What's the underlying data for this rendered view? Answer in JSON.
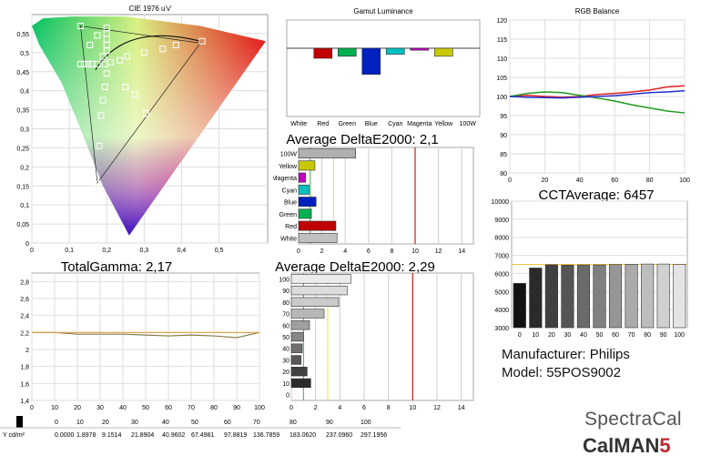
{
  "chart_data": [
    {
      "type": "scatter",
      "title": "CIE 1976 u'v'",
      "x_ticks": [
        "0",
        "0,1",
        "0,2",
        "0,3",
        "0,4",
        "0,5"
      ],
      "y_ticks": [
        "0,55",
        "0,5",
        "0,45",
        "0,4",
        "0,35",
        "0,3",
        "0,25",
        "0,2",
        "0,15",
        "0,1",
        "0,05",
        "0"
      ],
      "xlim": [
        0,
        0.63
      ],
      "ylim": [
        0,
        0.6
      ],
      "grid": true,
      "series": [
        {
          "points": [
            [
              0.13,
              0.57
            ],
            [
              0.155,
              0.52
            ],
            [
              0.175,
              0.545
            ],
            [
              0.2,
              0.565
            ],
            [
              0.2,
              0.55
            ],
            [
              0.2,
              0.535
            ],
            [
              0.2,
              0.52
            ],
            [
              0.2,
              0.505
            ],
            [
              0.19,
              0.49
            ],
            [
              0.175,
              0.47
            ],
            [
              0.14,
              0.47
            ],
            [
              0.13,
              0.47
            ],
            [
              0.15,
              0.47
            ],
            [
              0.16,
              0.47
            ],
            [
              0.195,
              0.47
            ],
            [
              0.21,
              0.475
            ],
            [
              0.235,
              0.48
            ],
            [
              0.255,
              0.49
            ],
            [
              0.3,
              0.5
            ],
            [
              0.35,
              0.51
            ],
            [
              0.385,
              0.52
            ],
            [
              0.455,
              0.53
            ],
            [
              0.2,
              0.445
            ],
            [
              0.195,
              0.41
            ],
            [
              0.19,
              0.375
            ],
            [
              0.25,
              0.41
            ],
            [
              0.275,
              0.39
            ],
            [
              0.305,
              0.34
            ],
            [
              0.185,
              0.335
            ],
            [
              0.18,
              0.255
            ],
            [
              0.175,
              0.155
            ]
          ]
        }
      ]
    },
    {
      "type": "bar",
      "title": "Gamut Luminance",
      "categories": [
        "White",
        "Red",
        "Green",
        "Blue",
        "Cyan",
        "Magenta",
        "Yellow",
        "100W"
      ],
      "values": [
        0,
        -2.5,
        -2,
        -6.5,
        -1.5,
        -0.5,
        -2,
        0
      ],
      "colors": [
        "#808080",
        "#c00000",
        "#00b050",
        "#0020c0",
        "#00c0c0",
        "#c000c0",
        "#c8c800",
        "#808080"
      ],
      "ylim": [
        -12,
        12
      ]
    },
    {
      "type": "line",
      "title": "RGB Balance",
      "x": [
        0,
        10,
        20,
        30,
        40,
        50,
        60,
        70,
        80,
        90,
        100
      ],
      "x_ticks": [
        "0",
        "20",
        "40",
        "60",
        "80",
        "100"
      ],
      "y_ticks": [
        "80",
        "85",
        "90",
        "95",
        "100",
        "105",
        "110",
        "115",
        "120"
      ],
      "ylim": [
        80,
        120
      ],
      "series": [
        {
          "color": "#e02020",
          "values": [
            100,
            100.3,
            100,
            99.8,
            100,
            100.5,
            100.8,
            101.2,
            101.7,
            102.5,
            102.8
          ]
        },
        {
          "color": "#1f9a1f",
          "values": [
            100,
            100.8,
            101.2,
            101,
            100.3,
            99.6,
            98.8,
            97.8,
            97,
            96.2,
            95.7
          ]
        },
        {
          "color": "#2030d0",
          "values": [
            100,
            99.8,
            99.7,
            99.6,
            99.8,
            100,
            100.2,
            100.6,
            101,
            101.2,
            101.5
          ]
        }
      ]
    },
    {
      "type": "bar",
      "title": "Average DeltaE2000: 2,1",
      "orientation": "horizontal",
      "categories": [
        "100W",
        "Yellow",
        "Magenta",
        "Cyan",
        "Blue",
        "Green",
        "Red",
        "White"
      ],
      "values": [
        4.9,
        1.4,
        0.6,
        0.9,
        1.5,
        1.1,
        3.2,
        3.3
      ],
      "colors": [
        "#b0b0b0",
        "#c8c800",
        "#c000c0",
        "#00c0c0",
        "#0020c0",
        "#00b050",
        "#c00000",
        "#c0c0c0"
      ],
      "x_ticks": [
        "0",
        "2",
        "4",
        "6",
        "8",
        "10",
        "12",
        "14"
      ],
      "xlim": [
        0,
        15
      ]
    },
    {
      "type": "line",
      "title": "TotalGamma: 2,17",
      "x": [
        0,
        10,
        20,
        30,
        40,
        50,
        60,
        70,
        80,
        90,
        100
      ],
      "x_ticks": [
        "0",
        "10",
        "20",
        "30",
        "40",
        "50",
        "60",
        "70",
        "80",
        "90",
        "100"
      ],
      "y_ticks": [
        "2,8",
        "2,6",
        "2,4",
        "2,2",
        "2",
        "1,8",
        "1,6",
        "1,4"
      ],
      "ylim": [
        1.4,
        2.9
      ],
      "series": [
        {
          "color": "#8a7a4a",
          "values": [
            2.2,
            2.2,
            2.18,
            2.18,
            2.18,
            2.17,
            2.16,
            2.17,
            2.16,
            2.14,
            2.2
          ]
        },
        {
          "color": "#e0a040",
          "values": [
            2.2,
            2.2,
            2.2,
            2.2,
            2.2,
            2.2,
            2.2,
            2.2,
            2.2,
            2.2,
            2.2
          ]
        }
      ]
    },
    {
      "type": "bar",
      "title": "Average DeltaE2000: 2,29",
      "orientation": "horizontal",
      "categories": [
        "100",
        "90",
        "80",
        "70",
        "60",
        "50",
        "40",
        "30",
        "20",
        "10",
        "0"
      ],
      "values": [
        4.9,
        4.6,
        3.9,
        2.7,
        1.5,
        1.0,
        0.9,
        0.8,
        1.3,
        1.6,
        0.0
      ],
      "x_ticks": [
        "0",
        "2",
        "4",
        "6",
        "8",
        "10",
        "12",
        "14"
      ],
      "xlim": [
        0,
        15
      ]
    },
    {
      "type": "bar",
      "title": "CCTAverage: 6457",
      "categories": [
        "0",
        "10",
        "20",
        "30",
        "40",
        "50",
        "60",
        "70",
        "80",
        "90",
        "100"
      ],
      "values": [
        5450,
        6300,
        6480,
        6460,
        6470,
        6470,
        6490,
        6510,
        6520,
        6520,
        6500
      ],
      "y_ticks": [
        "10000",
        "9000",
        "8000",
        "7000",
        "6000",
        "5000",
        "4000",
        "3000"
      ],
      "ylim": [
        3000,
        10000
      ]
    },
    {
      "type": "table",
      "header": [
        "0",
        "10",
        "20",
        "30",
        "40",
        "50",
        "60",
        "70",
        "80",
        "90",
        "100"
      ],
      "row_label": "Y cd/m²",
      "values": [
        "0.0000",
        "1.8978",
        "9.1514",
        "21.8904",
        "40.9602",
        "67.4981",
        "97.8819",
        "136.7859",
        "183.0620",
        "237.0960",
        "297.1956"
      ]
    }
  ],
  "info": {
    "manufacturer": "Manufacturer: Philips",
    "model": "Model: 55POS9002"
  },
  "branding": {
    "brand1": "SpectraCal",
    "brand2_main": "CalMAN",
    "brand2_num": "5"
  }
}
